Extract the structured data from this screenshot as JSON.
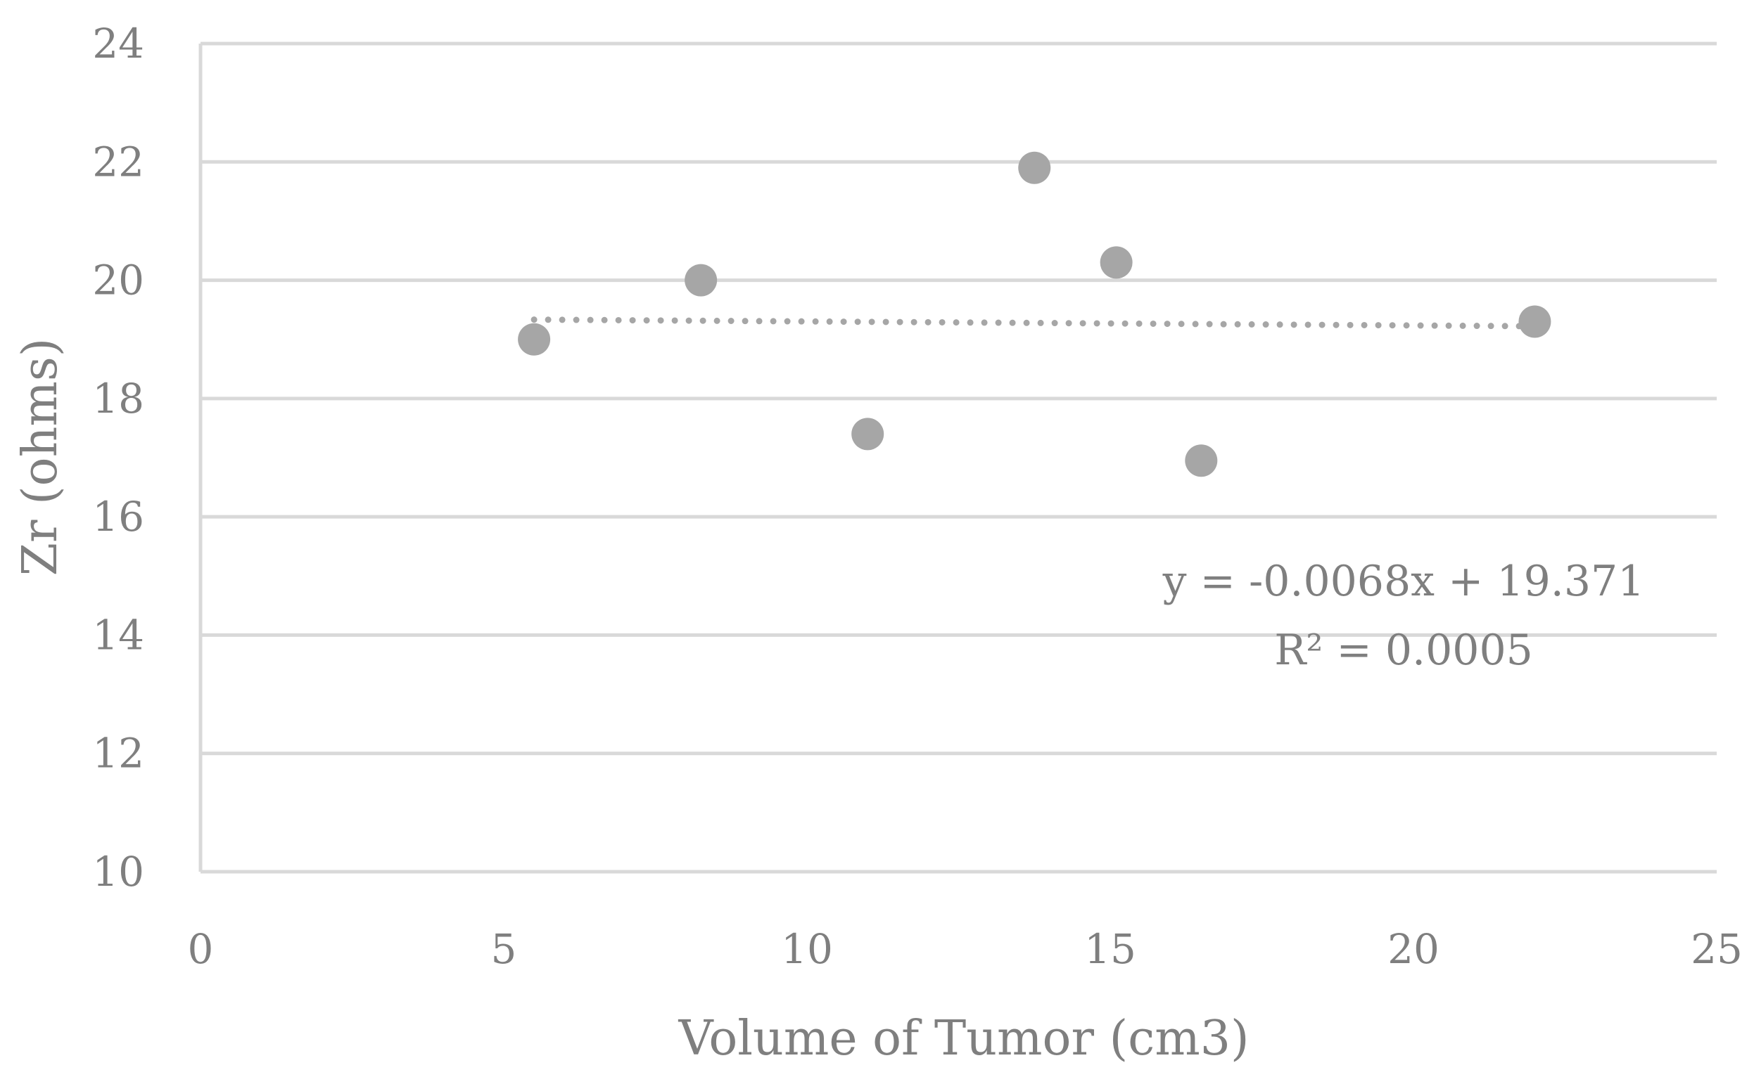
{
  "chart_data": {
    "type": "scatter",
    "title": "",
    "xlabel": "Volume of Tumor (cm3)",
    "ylabel": "Zr (ohms)",
    "xlim": [
      0,
      25
    ],
    "ylim": [
      10,
      24
    ],
    "xticks": [
      0,
      5,
      10,
      15,
      20,
      25
    ],
    "yticks": [
      10,
      12,
      14,
      16,
      18,
      20,
      22,
      24
    ],
    "grid": "horizontal",
    "legend": "none",
    "series": [
      {
        "name": "Zr",
        "x": [
          5.5,
          8.25,
          11.0,
          13.75,
          15.1,
          16.5,
          22.0
        ],
        "y": [
          19.0,
          20.0,
          17.4,
          21.9,
          20.3,
          16.95,
          19.3
        ],
        "color": "#a6a6a6"
      }
    ],
    "trendline": {
      "type": "linear",
      "slope": -0.0068,
      "intercept": 19.371,
      "x_range": [
        5.5,
        22.0
      ],
      "style": "dotted",
      "color": "#a6a6a6",
      "equation": "y = -0.0068x + 19.371",
      "r_squared": "R² = 0.0005"
    },
    "colors": {
      "grid": "#d9d9d9",
      "axis": "#d9d9d9",
      "text": "#7f7f7f"
    }
  }
}
